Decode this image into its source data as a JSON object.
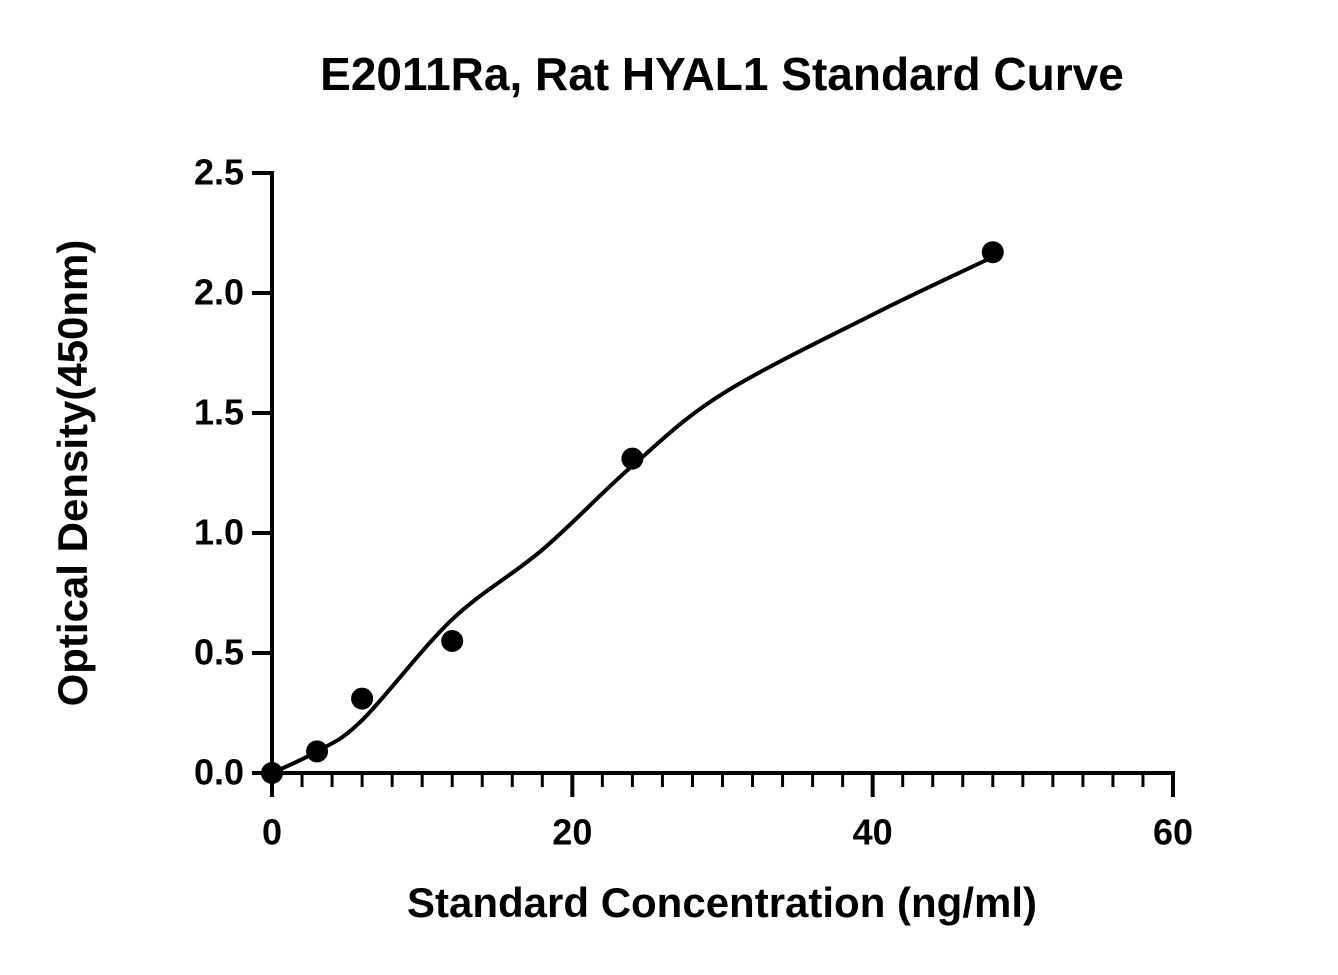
{
  "chart_data": {
    "type": "scatter",
    "title": "E2011Ra, Rat HYAL1 Standard Curve",
    "x_label": "Standard Concentration (ng/ml)",
    "y_label": "Optical Density(450nm)",
    "x": [
      0,
      3,
      6,
      12,
      24,
      48
    ],
    "values": [
      0.0,
      0.09,
      0.31,
      0.55,
      1.31,
      2.17
    ],
    "color": "#000000",
    "curve": {
      "x": [
        0,
        3,
        6,
        12,
        18,
        24,
        30,
        40,
        48
      ],
      "values": [
        0.0,
        0.09,
        0.22,
        0.64,
        0.93,
        1.28,
        1.58,
        1.91,
        2.15
      ]
    },
    "xlim": [
      0,
      60
    ],
    "xticks": [
      0,
      20,
      40,
      60
    ],
    "xminorticks": [
      2,
      4,
      6,
      8,
      10,
      12,
      14,
      16,
      18,
      22,
      24,
      26,
      28,
      30,
      32,
      34,
      36,
      38,
      42,
      44,
      46,
      48,
      50,
      52,
      54,
      56,
      58
    ],
    "ylim": [
      0,
      2.5
    ],
    "yticks": [
      {
        "value": 0,
        "label": "0.0"
      },
      0.5,
      {
        "value": 1,
        "label": "1.0"
      },
      1.5,
      {
        "value": 2,
        "label": "2.0"
      },
      2.5
    ],
    "grid": false
  }
}
